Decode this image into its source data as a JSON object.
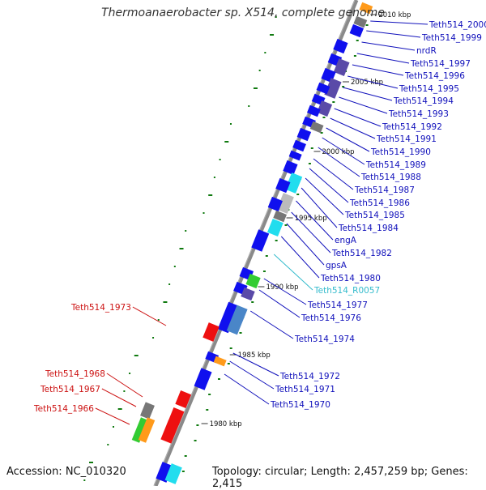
{
  "title": "Thermoanaerobacter sp. X514, complete genome",
  "footer": {
    "accession": "Accession: NC_010320",
    "summary": "Topology: circular; Length: 2,457,259 bp; Genes: 2,415"
  },
  "colors": {
    "backbone": "#7f7f7f",
    "gene_blue": "#1010ee",
    "gene_red": "#ee1010",
    "rna_cyan": "#22ddee",
    "dot_green": "#107a10",
    "label_blue": "#1010bb",
    "label_red": "#cc1111",
    "label_cyan": "#33bbcc"
  },
  "scale_ticks": [
    "2010 kbp",
    "2005 kbp",
    "2000 kbp",
    "1995 kbp",
    "1990 kbp",
    "1985 kbp",
    "1980 kbp"
  ],
  "labels_right": [
    "Teth514_2000",
    "Teth514_1999",
    "nrdR",
    "Teth514_1997",
    "Teth514_1996",
    "Teth514_1995",
    "Teth514_1994",
    "Teth514_1993",
    "Teth514_1992",
    "Teth514_1991",
    "Teth514_1990",
    "Teth514_1989",
    "Teth514_1988",
    "Teth514_1987",
    "Teth514_1986",
    "Teth514_1985",
    "Teth514_1984",
    "engA",
    "Teth514_1982",
    "gpsA",
    "Teth514_1980",
    "Teth514_R0057",
    "Teth514_1977",
    "Teth514_1976",
    "Teth514_1974",
    "Teth514_1972",
    "Teth514_1971",
    "Teth514_1970"
  ],
  "labels_left": [
    "Teth514_1973",
    "Teth514_1968",
    "Teth514_1967",
    "Teth514_1966"
  ]
}
